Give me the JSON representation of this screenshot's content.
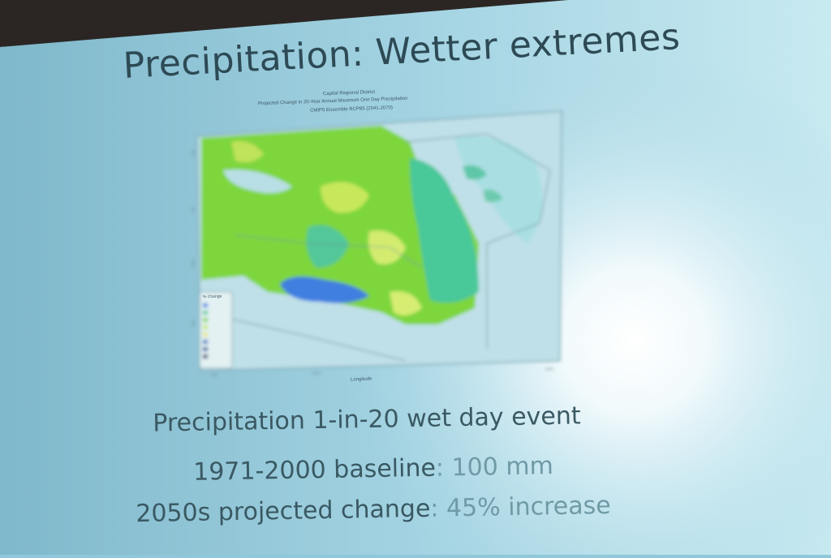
{
  "slide": {
    "title": "Precipitation: Wetter extremes",
    "subtitle": "Precipitation 1-in-20 wet day event",
    "baseline_label": "1971-2000 baseline",
    "baseline_value": ": 100 mm",
    "change_label": "2050s projected change",
    "change_value": ": 45% increase"
  },
  "map_figure": {
    "header_line1": "Capital Regional District",
    "header_line2": "Projected Change in 20-Year Annual Maximum One Day Precipitation",
    "header_line3": "CMIP5 Ensemble RCP85 (2041-2070)",
    "x_axis_label": "Longitude",
    "legend_title": "% Change"
  },
  "colors": {
    "background": "#8fc8da",
    "text": "#33505a",
    "map_green": "#7ed63c",
    "map_yellow": "#c8e85c",
    "map_blue": "#3f7fe0",
    "map_water": "#b9dfe6"
  }
}
